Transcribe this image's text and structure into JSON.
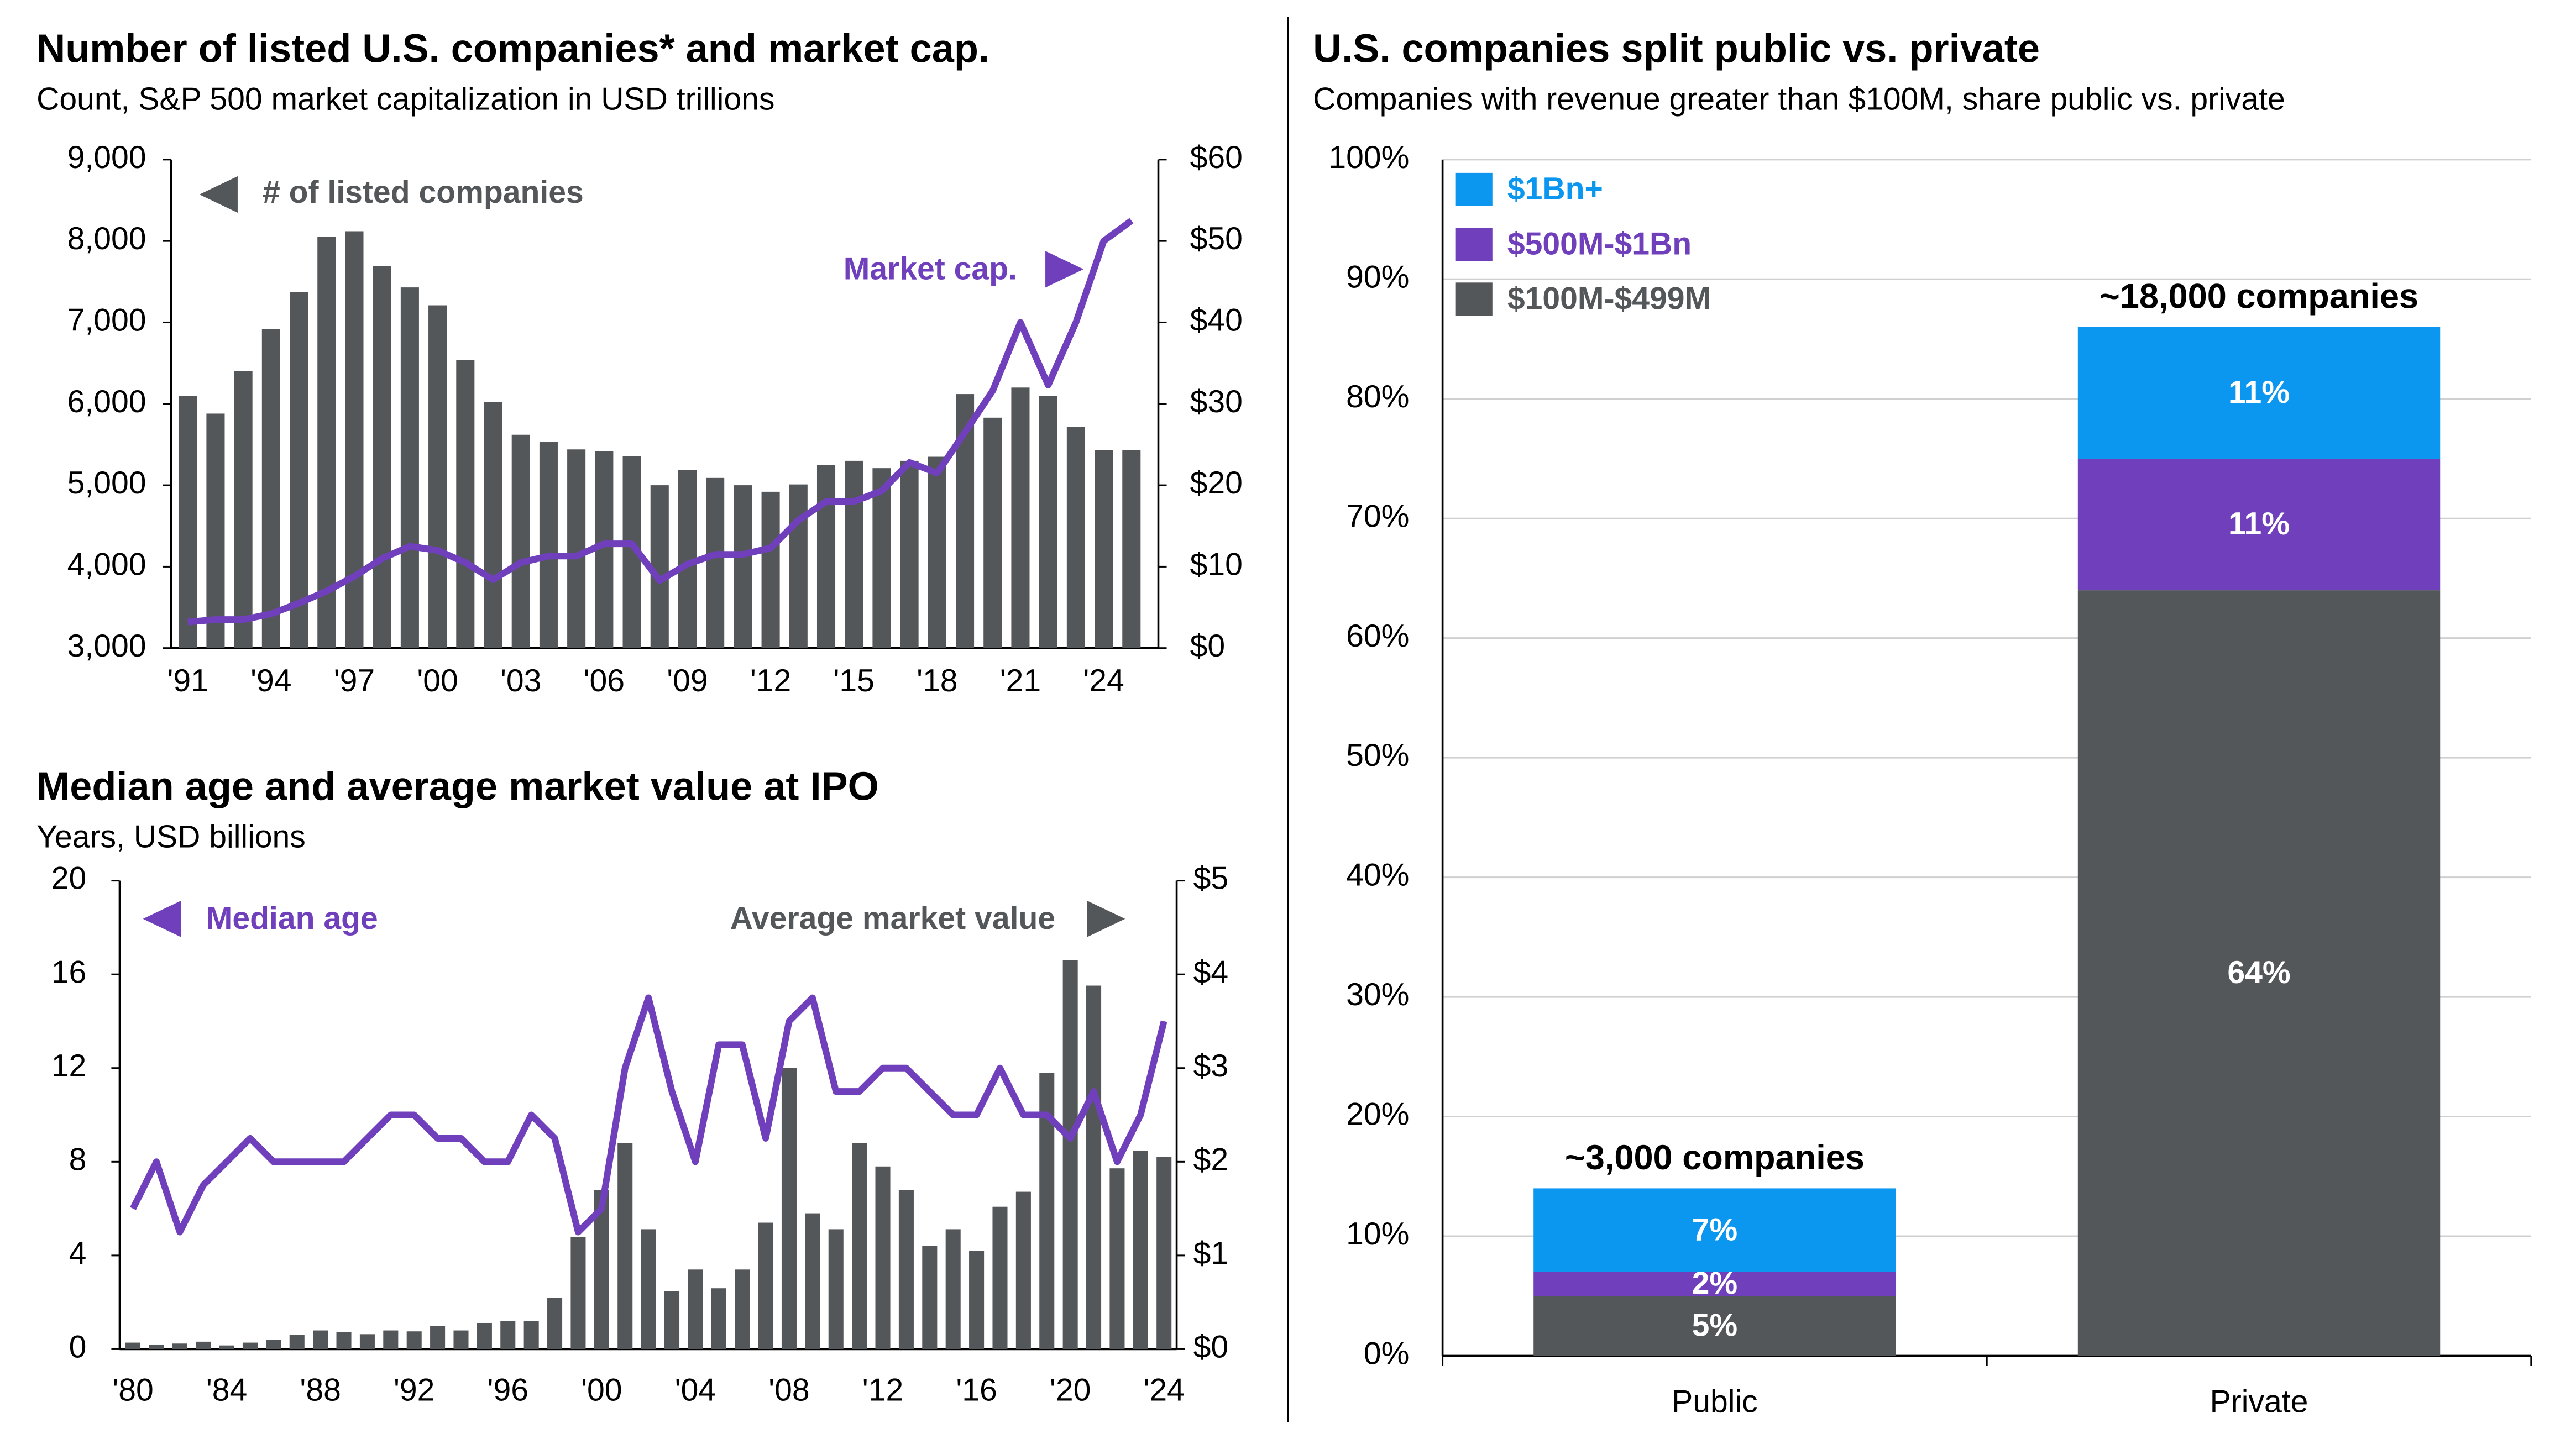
{
  "chart_data": [
    {
      "type": "bar-line",
      "title": "Number of listed U.S. companies* and market cap.",
      "subtitle": "Count, S&P 500 market capitalization in USD trillions",
      "annotations": [
        "# of listed companies",
        "Market cap."
      ],
      "categories": [
        "'91",
        null,
        null,
        "'94",
        null,
        null,
        "'97",
        null,
        null,
        "'00",
        null,
        null,
        "'03",
        null,
        null,
        "'06",
        null,
        null,
        "'09",
        null,
        null,
        "'12",
        null,
        null,
        "'15",
        null,
        null,
        "'18",
        null,
        null,
        "'21",
        null,
        null,
        "'24",
        null
      ],
      "series": [
        {
          "name": "# of listed companies",
          "kind": "bar",
          "color": "#54575a",
          "values": [
            6100,
            5880,
            6400,
            6920,
            7370,
            8050,
            8120,
            7690,
            7430,
            7210,
            6540,
            6020,
            5620,
            5530,
            5440,
            5420,
            5360,
            5000,
            5190,
            5090,
            5000,
            4920,
            5010,
            5250,
            5300,
            5210,
            5300,
            5350,
            6120,
            5830,
            6200,
            6100,
            5720,
            5430,
            5430
          ]
        },
        {
          "name": "Market cap.",
          "kind": "line",
          "axis": "y2",
          "color": "#7040bc",
          "values": [
            3.2,
            3.5,
            3.5,
            4.2,
            5.5,
            7,
            8.8,
            11,
            12.5,
            12,
            10.5,
            8.4,
            10.5,
            11.3,
            11.3,
            12.8,
            12.8,
            8.3,
            10.3,
            11.5,
            11.5,
            12.3,
            15.7,
            18,
            18,
            19.3,
            22.8,
            21.5,
            26.5,
            31.6,
            40,
            32.3,
            40,
            50,
            52.5
          ]
        }
      ],
      "ylim": [
        3000,
        9000
      ],
      "yticks": [
        {
          "value": 3000,
          "label": "3,000"
        },
        {
          "value": 4000,
          "label": "4,000"
        },
        {
          "value": 5000,
          "label": "5,000"
        },
        {
          "value": 6000,
          "label": "6,000"
        },
        {
          "value": 7000,
          "label": "7,000"
        },
        {
          "value": 8000,
          "label": "8,000"
        },
        {
          "value": 9000,
          "label": "9,000"
        }
      ],
      "y2lim": [
        0,
        60
      ],
      "y2ticks": [
        {
          "value": 0,
          "label": "$0"
        },
        {
          "value": 10,
          "label": "$10"
        },
        {
          "value": 20,
          "label": "$20"
        },
        {
          "value": 30,
          "label": "$30"
        },
        {
          "value": 40,
          "label": "$40"
        },
        {
          "value": 50,
          "label": "$50"
        },
        {
          "value": 60,
          "label": "$60"
        }
      ],
      "grid": false
    },
    {
      "type": "bar-line",
      "title": "Median age and average market value at IPO",
      "subtitle": "Years, USD billions",
      "annotations": [
        "Median age",
        "Average market value"
      ],
      "categories": [
        "'80",
        null,
        null,
        null,
        "'84",
        null,
        null,
        null,
        "'88",
        null,
        null,
        null,
        "'92",
        null,
        null,
        null,
        "'96",
        null,
        null,
        null,
        "'00",
        null,
        null,
        null,
        "'04",
        null,
        null,
        null,
        "'08",
        null,
        null,
        null,
        "'12",
        null,
        null,
        null,
        "'16",
        null,
        null,
        null,
        "'20",
        null,
        null,
        null,
        "'24"
      ],
      "series": [
        {
          "name": "Average market value",
          "kind": "bar",
          "axis": "y2",
          "color": "#54575a",
          "values": [
            0.07,
            0.05,
            0.06,
            0.08,
            0.04,
            0.07,
            0.1,
            0.15,
            0.2,
            0.18,
            0.16,
            0.2,
            0.19,
            0.25,
            0.2,
            0.28,
            0.3,
            0.3,
            0.55,
            1.2,
            1.7,
            2.2,
            1.28,
            0.62,
            0.85,
            0.65,
            0.85,
            1.35,
            3.0,
            1.45,
            1.28,
            2.2,
            1.95,
            1.7,
            1.1,
            1.28,
            1.05,
            1.52,
            1.68,
            2.95,
            4.15,
            3.88,
            1.93,
            2.12,
            2.05
          ]
        },
        {
          "name": "Median age",
          "kind": "line",
          "color": "#7040bc",
          "values": [
            6,
            8,
            5,
            7,
            8,
            9,
            8,
            8,
            8,
            8,
            9,
            10,
            10,
            9,
            9,
            8,
            8,
            10,
            9,
            5,
            6,
            12,
            15,
            11,
            8,
            13,
            13,
            9,
            14,
            15,
            11,
            11,
            12,
            12,
            11,
            10,
            10,
            12,
            10,
            10,
            9,
            11,
            8,
            10,
            14
          ]
        }
      ],
      "ylim": [
        0,
        20
      ],
      "yticks": [
        0,
        4,
        8,
        12,
        16,
        20
      ],
      "y2lim": [
        0,
        5
      ],
      "y2ticks": [
        {
          "value": 0,
          "label": "$0"
        },
        {
          "value": 1,
          "label": "$1"
        },
        {
          "value": 2,
          "label": "$2"
        },
        {
          "value": 3,
          "label": "$3"
        },
        {
          "value": 4,
          "label": "$4"
        },
        {
          "value": 5,
          "label": "$5"
        }
      ],
      "grid": false
    },
    {
      "type": "stacked-bar",
      "title": "U.S. companies split public vs. private",
      "subtitle": "Companies with revenue greater than $100M, share public vs. private",
      "categories": [
        "Public",
        "Private"
      ],
      "total_labels": [
        "~3,000 companies",
        "~18,000 companies"
      ],
      "series": [
        {
          "name": "$100M-$499M",
          "color": "#54575a",
          "values": [
            5,
            64
          ],
          "value_labels": [
            "5%",
            "64%"
          ]
        },
        {
          "name": "$500M-$1Bn",
          "color": "#7040bc",
          "values": [
            2,
            11
          ],
          "value_labels": [
            "2%",
            "11%"
          ]
        },
        {
          "name": "$1Bn+",
          "color": "#0b96f0",
          "values": [
            7,
            11
          ],
          "value_labels": [
            "7%",
            "11%"
          ]
        }
      ],
      "ylim": [
        0,
        100
      ],
      "yticks": [
        {
          "value": 0,
          "label": "0%"
        },
        {
          "value": 10,
          "label": "10%"
        },
        {
          "value": 20,
          "label": "20%"
        },
        {
          "value": 30,
          "label": "30%"
        },
        {
          "value": 40,
          "label": "40%"
        },
        {
          "value": 50,
          "label": "50%"
        },
        {
          "value": 60,
          "label": "60%"
        },
        {
          "value": 70,
          "label": "70%"
        },
        {
          "value": 80,
          "label": "80%"
        },
        {
          "value": 90,
          "label": "90%"
        },
        {
          "value": 100,
          "label": "100%"
        }
      ],
      "grid": true
    }
  ]
}
